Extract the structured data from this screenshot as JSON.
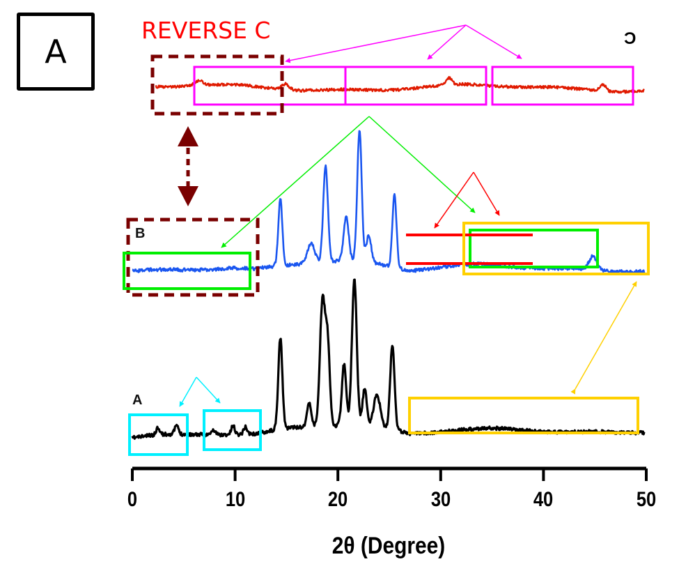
{
  "panel_label": "A",
  "annotation_title": "REVERSE C",
  "colors": {
    "trace_A": "#000000",
    "trace_B": "#1a56f0",
    "trace_C": "#e01a00",
    "magenta": "#ff00ff",
    "green": "#00ee00",
    "red": "#ff0000",
    "gold": "#ffd000",
    "cyan": "#00ffff",
    "maroon": "#7a0000"
  },
  "chart_data": {
    "type": "line",
    "title": "",
    "xlabel": "2θ (Degree)",
    "ylabel": "",
    "xlim": [
      0,
      50
    ],
    "xticks": [
      0,
      10,
      20,
      30,
      40,
      50
    ],
    "xtick_labels": [
      "0",
      "10",
      "20",
      "30",
      "40",
      "50"
    ],
    "grid": false,
    "series": [
      {
        "name": "A",
        "label": "A",
        "color": "#000000",
        "baseline": 0.05,
        "peaks": [
          {
            "x": 2.5,
            "h": 0.05,
            "w": 0.25
          },
          {
            "x": 4.3,
            "h": 0.06,
            "w": 0.25
          },
          {
            "x": 7.9,
            "h": 0.03,
            "w": 0.3
          },
          {
            "x": 9.8,
            "h": 0.06,
            "w": 0.25
          },
          {
            "x": 11.0,
            "h": 0.05,
            "w": 0.25
          },
          {
            "x": 14.4,
            "h": 0.62,
            "w": 0.28
          },
          {
            "x": 17.2,
            "h": 0.16,
            "w": 0.3
          },
          {
            "x": 18.5,
            "h": 0.85,
            "w": 0.35
          },
          {
            "x": 19.0,
            "h": 0.55,
            "w": 0.3
          },
          {
            "x": 20.6,
            "h": 0.42,
            "w": 0.3
          },
          {
            "x": 21.6,
            "h": 1.0,
            "w": 0.33
          },
          {
            "x": 22.6,
            "h": 0.25,
            "w": 0.3
          },
          {
            "x": 23.8,
            "h": 0.22,
            "w": 0.45
          },
          {
            "x": 25.3,
            "h": 0.58,
            "w": 0.3
          }
        ]
      },
      {
        "name": "B",
        "label": "B",
        "color": "#1a56f0",
        "baseline": 0.05,
        "peaks": [
          {
            "x": 14.4,
            "h": 0.5,
            "w": 0.28
          },
          {
            "x": 17.4,
            "h": 0.15,
            "w": 0.5
          },
          {
            "x": 18.8,
            "h": 0.73,
            "w": 0.32
          },
          {
            "x": 20.8,
            "h": 0.33,
            "w": 0.35
          },
          {
            "x": 22.1,
            "h": 1.0,
            "w": 0.3
          },
          {
            "x": 23.0,
            "h": 0.2,
            "w": 0.35
          },
          {
            "x": 25.5,
            "h": 0.56,
            "w": 0.28
          },
          {
            "x": 44.8,
            "h": 0.1,
            "w": 0.5
          }
        ]
      },
      {
        "name": "C (reversed)",
        "label": "C",
        "color": "#e01a00",
        "baseline": 0.05,
        "peaks": [
          {
            "x": 6.5,
            "h": 0.25,
            "w": 0.6
          },
          {
            "x": 14.9,
            "h": 0.3,
            "w": 0.5
          },
          {
            "x": 30.8,
            "h": 0.35,
            "w": 0.4
          },
          {
            "x": 45.8,
            "h": 0.35,
            "w": 0.4
          }
        ]
      }
    ]
  },
  "annotations": {
    "magenta_boxes": 3,
    "green_boxes": 2,
    "gold_boxes": 2,
    "cyan_boxes": 2,
    "maroon_dashed_boxes": 2,
    "red_band_lines": 2
  }
}
